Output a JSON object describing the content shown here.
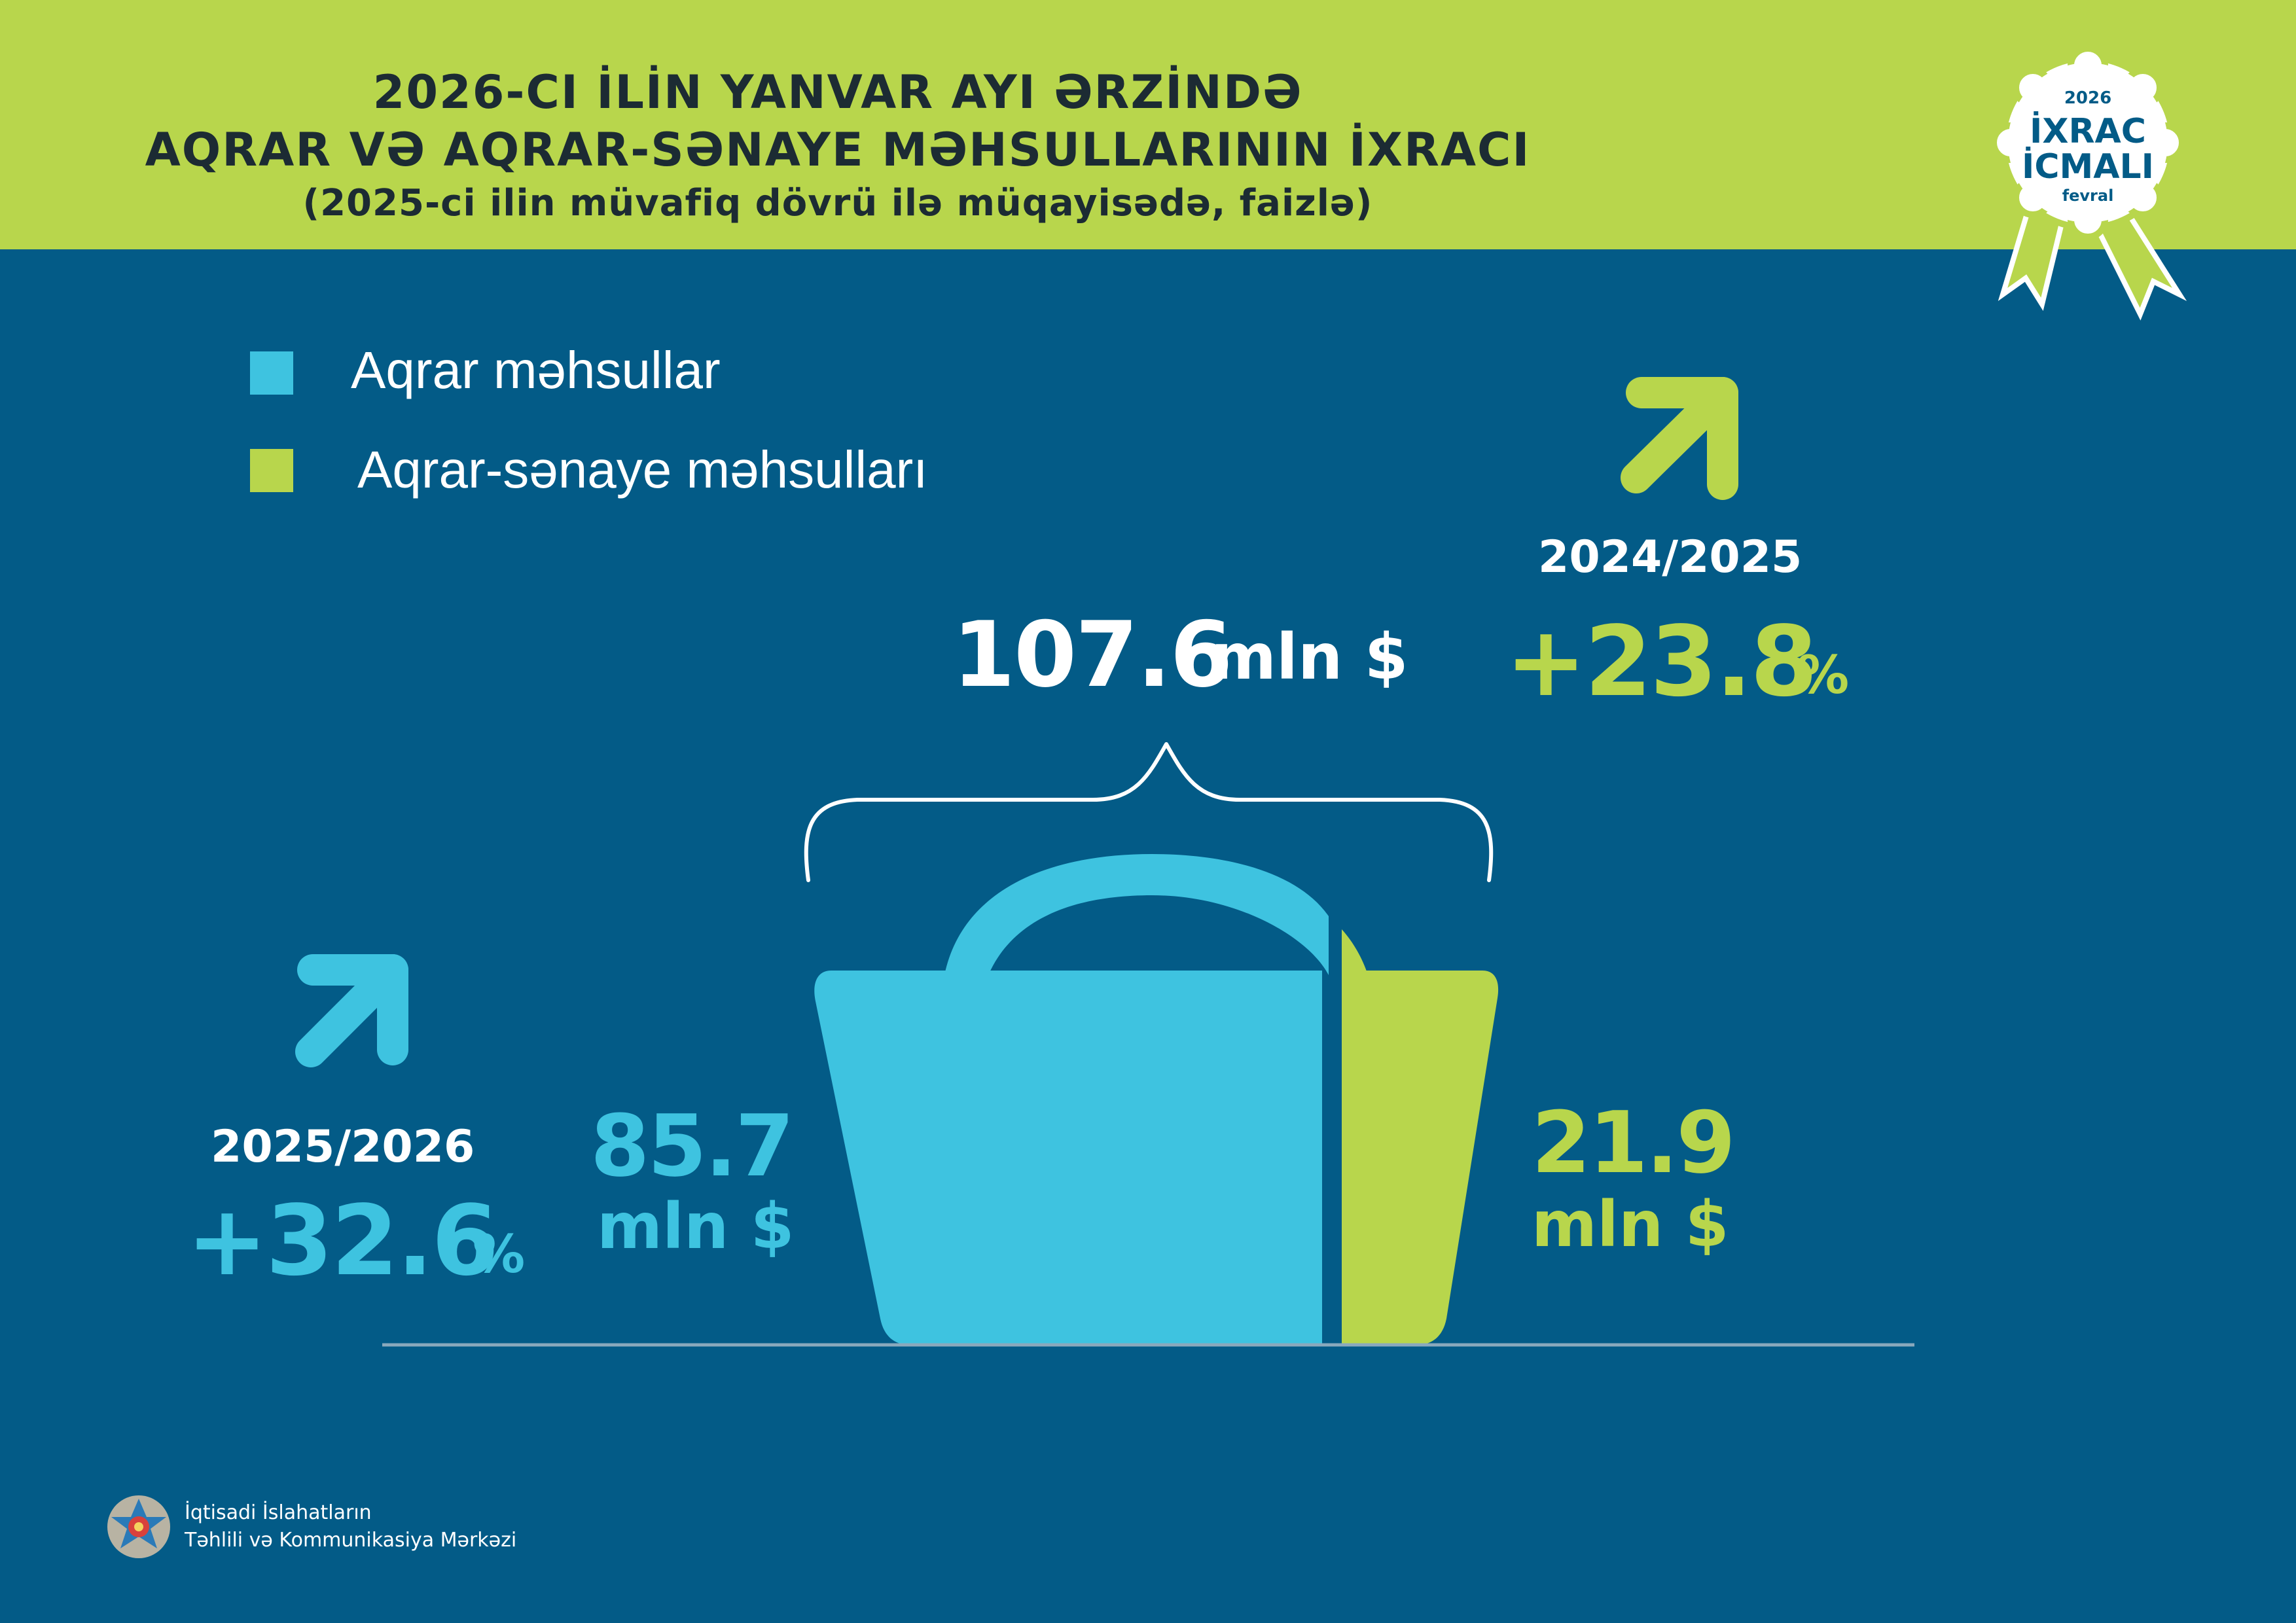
{
  "header": {
    "title_line1": "2026-CI İLİN YANVAR AYI ƏRZİNDƏ",
    "title_line2": "AQRAR VƏ AQRAR-SƏNAYE MƏHSULLARININ İXRACI",
    "subtitle": "(2025-ci ilin müvafiq dövrü ilə müqayisədə, faizlə)"
  },
  "badge": {
    "year": "2026",
    "line1": "İXRAC",
    "line2": "İCMALI",
    "month": "fevral"
  },
  "legend": [
    {
      "label": "Aqrar məhsullar",
      "color": "#3ec3e0"
    },
    {
      "label": "Aqrar-sənaye məhsulları",
      "color": "#b8d64c"
    }
  ],
  "total": {
    "value": "107.6",
    "unit": "mln $"
  },
  "agrar": {
    "value": "85.7",
    "unit": "mln $",
    "period": "2025/2026",
    "change": "+32.6",
    "percent": "%",
    "color": "#3ec3e0"
  },
  "agro_industrial": {
    "value": "21.9",
    "unit": "mln $",
    "period": "2024/2025",
    "change": "+23.8",
    "percent": "%",
    "color": "#b8d64c"
  },
  "colors": {
    "background": "#035b87",
    "header": "#b8d64c"
  },
  "footer": {
    "line1": "İqtisadi İslahatların",
    "line2": "Təhlili və Kommunikasiya Mərkəzi"
  }
}
